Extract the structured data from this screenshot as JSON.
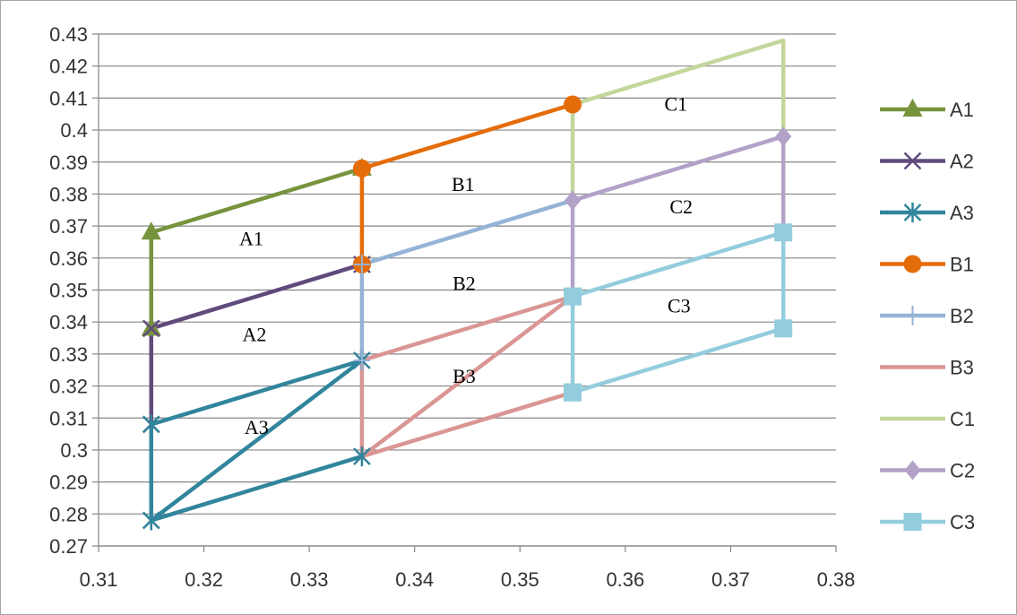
{
  "chart_data": {
    "type": "line",
    "title": "",
    "xlabel": "",
    "ylabel": "",
    "xlim": [
      0.31,
      0.38
    ],
    "ylim": [
      0.27,
      0.43
    ],
    "x_ticks": [
      "0.31",
      "0.32",
      "0.33",
      "0.34",
      "0.35",
      "0.36",
      "0.37",
      "0.38"
    ],
    "y_ticks": [
      "0.27",
      "0.28",
      "0.29",
      "0.3",
      "0.31",
      "0.32",
      "0.33",
      "0.34",
      "0.35",
      "0.36",
      "0.37",
      "0.38",
      "0.39",
      "0.4",
      "0.41",
      "0.42",
      "0.43"
    ],
    "grid": "horizontal",
    "legend_position": "right",
    "series": [
      {
        "name": "A1",
        "color": "#77933c",
        "marker": "triangle",
        "points": [
          [
            0.315,
            0.338
          ],
          [
            0.315,
            0.368
          ],
          [
            0.335,
            0.388
          ]
        ]
      },
      {
        "name": "A2",
        "color": "#604a7b",
        "marker": "x",
        "points": [
          [
            0.315,
            0.308
          ],
          [
            0.315,
            0.338
          ],
          [
            0.335,
            0.358
          ]
        ]
      },
      {
        "name": "A3",
        "color": "#31859c",
        "marker": "asterisk",
        "points": [
          [
            0.315,
            0.278
          ],
          [
            0.315,
            0.308
          ],
          [
            0.335,
            0.328
          ],
          [
            0.315,
            0.278
          ],
          [
            0.335,
            0.298
          ]
        ]
      },
      {
        "name": "B1",
        "color": "#e46c0a",
        "marker": "circle",
        "points": [
          [
            0.335,
            0.358
          ],
          [
            0.335,
            0.388
          ],
          [
            0.355,
            0.408
          ]
        ]
      },
      {
        "name": "B2",
        "color": "#95b3d7",
        "marker": "plus",
        "points": [
          [
            0.335,
            0.328
          ],
          [
            0.335,
            0.358
          ],
          [
            0.355,
            0.378
          ]
        ]
      },
      {
        "name": "B3",
        "color": "#d99694",
        "marker": "none",
        "points": [
          [
            0.335,
            0.298
          ],
          [
            0.335,
            0.328
          ],
          [
            0.355,
            0.348
          ],
          [
            0.335,
            0.298
          ],
          [
            0.355,
            0.318
          ]
        ]
      },
      {
        "name": "C1",
        "color": "#c3d69b",
        "marker": "none",
        "points": [
          [
            0.355,
            0.378
          ],
          [
            0.355,
            0.408
          ],
          [
            0.375,
            0.428
          ],
          [
            0.375,
            0.398
          ]
        ]
      },
      {
        "name": "C2",
        "color": "#b3a2c7",
        "marker": "diamond",
        "points": [
          [
            0.355,
            0.348
          ],
          [
            0.355,
            0.378
          ],
          [
            0.375,
            0.398
          ],
          [
            0.375,
            0.368
          ]
        ]
      },
      {
        "name": "C3",
        "color": "#93cddd",
        "marker": "square",
        "points": [
          [
            0.355,
            0.318
          ],
          [
            0.355,
            0.348
          ],
          [
            0.375,
            0.368
          ],
          [
            0.375,
            0.338
          ],
          [
            0.355,
            0.318
          ]
        ]
      }
    ],
    "annotations": [
      {
        "text": "A1",
        "x": 0.3245,
        "y": 0.364
      },
      {
        "text": "A2",
        "x": 0.3248,
        "y": 0.334
      },
      {
        "text": "A3",
        "x": 0.325,
        "y": 0.305
      },
      {
        "text": "B1",
        "x": 0.3446,
        "y": 0.381
      },
      {
        "text": "B2",
        "x": 0.3447,
        "y": 0.35
      },
      {
        "text": "B3",
        "x": 0.3447,
        "y": 0.321
      },
      {
        "text": "C1",
        "x": 0.3648,
        "y": 0.406
      },
      {
        "text": "C2",
        "x": 0.3653,
        "y": 0.374
      },
      {
        "text": "C3",
        "x": 0.3651,
        "y": 0.343
      }
    ]
  }
}
